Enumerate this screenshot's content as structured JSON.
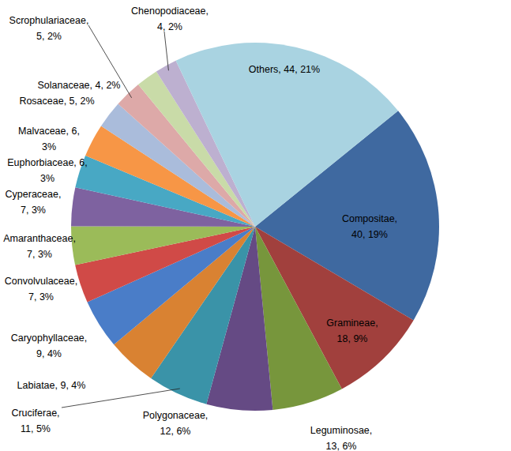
{
  "chart_data": {
    "type": "pie",
    "values": [
      40,
      18,
      13,
      12,
      11,
      9,
      9,
      7,
      7,
      7,
      6,
      6,
      5,
      5,
      4,
      4,
      44
    ],
    "percentages": [
      19,
      9,
      6,
      6,
      5,
      4,
      4,
      3,
      3,
      3,
      3,
      3,
      2,
      2,
      2,
      2,
      21
    ],
    "value_labels": [
      "Compositae, 40, 19%",
      "Gramineae, 18, 9%",
      "Leguminosae, 13, 6%",
      "Polygonaceae, 12, 6%",
      "Cruciferae, 11, 5%",
      "Labiatae, 9, 4%",
      "Caryophyllaceae, 9, 4%",
      "Convolvulaceae, 7, 3%",
      "Amaranthaceae, 7, 3%",
      "Cyperaceae, 7, 3%",
      "Euphorbiaceae, 6, 3%",
      "Malvaceae, 6, 3%",
      "Rosaceae, 5, 2%",
      "Scrophulariaceae, 5, 2%",
      "Solanaceae, 4, 2%",
      "Chenopodiaceae, 4, 2%",
      "Others, 44, 21%"
    ],
    "colors": [
      "#3f69a0",
      "#a1403d",
      "#77963c",
      "#654a84",
      "#3a93a8",
      "#d98232",
      "#4a7dc8",
      "#d04a47",
      "#9bbb59",
      "#7e62a0",
      "#48a8c4",
      "#f79646",
      "#aabcdb",
      "#dda9a8",
      "#c9dba8",
      "#bdb0d0",
      "#a9d3e1"
    ],
    "data_labels": true
  }
}
